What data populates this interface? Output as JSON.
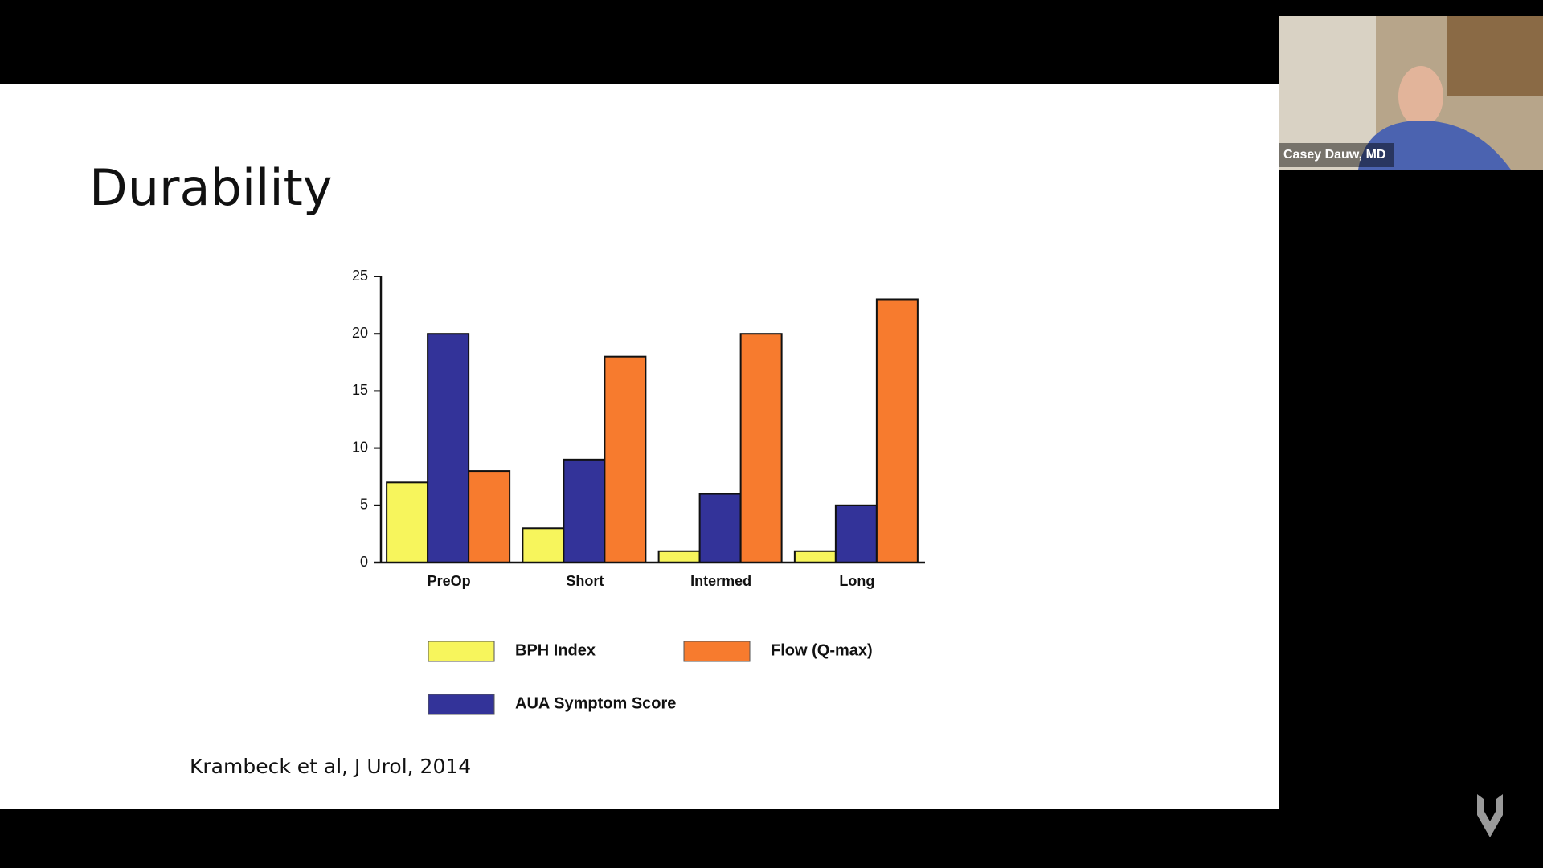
{
  "slide": {
    "title": "Durability",
    "citation": "Krambeck et al, J Urol, 2014"
  },
  "video": {
    "name": "Casey Dauw, MD"
  },
  "chart_data": {
    "type": "bar",
    "categories": [
      "PreOp",
      "Short",
      "Intermed",
      "Long"
    ],
    "series": [
      {
        "name": "BPH Index",
        "color": "#f7f55c",
        "values": [
          7,
          3,
          1,
          1
        ]
      },
      {
        "name": "AUA Symptom Score",
        "color": "#333399",
        "values": [
          20,
          9,
          6,
          5
        ]
      },
      {
        "name": "Flow (Q-max)",
        "color": "#f77b2e",
        "values": [
          8,
          18,
          20,
          23
        ]
      }
    ],
    "ylim": [
      0,
      25
    ],
    "yticks": [
      0,
      5,
      10,
      15,
      20,
      25
    ],
    "grid": false
  }
}
